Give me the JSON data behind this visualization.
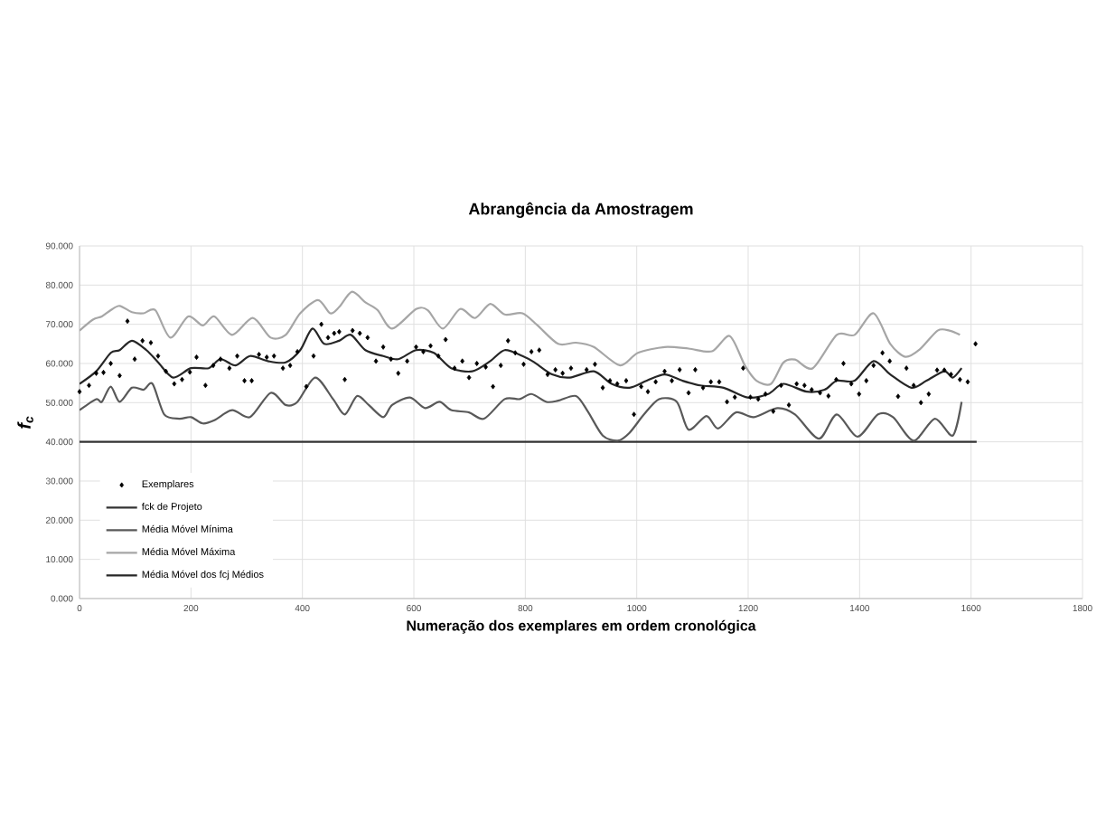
{
  "chart_data": {
    "type": "line",
    "title": "Abrangência da Amostragem",
    "xlabel": "Numeração dos exemplares em ordem cronológica",
    "ylabel": "f$_{c}$",
    "xlim": [
      0,
      1800
    ],
    "xticks": [
      0,
      200,
      400,
      600,
      800,
      1000,
      1200,
      1400,
      1600,
      1800
    ],
    "ylim": [
      0,
      90
    ],
    "yticks": [
      {
        "value": 0,
        "label": "0.000"
      },
      {
        "value": 10,
        "label": "10.000"
      },
      {
        "value": 20,
        "label": "20.000"
      },
      {
        "value": 30,
        "label": "30.000"
      },
      {
        "value": 40,
        "label": "40.000"
      },
      {
        "value": 50,
        "label": "50.000"
      },
      {
        "value": 60,
        "label": "60.000"
      },
      {
        "value": 70,
        "label": "70.000"
      },
      {
        "value": 80,
        "label": "80.000"
      },
      {
        "value": 90,
        "label": "90.000"
      }
    ],
    "grid": true,
    "legend": "bottom left",
    "series": [
      {
        "name": "Exemplares",
        "type": "scatter",
        "marker": "diamond",
        "color": "#000000",
        "x": [
          0,
          17,
          30,
          43,
          56,
          72,
          86,
          99,
          113,
          128,
          141,
          155,
          170,
          184,
          198,
          210,
          226,
          240,
          253,
          269,
          283,
          296,
          309,
          322,
          336,
          349,
          365,
          378,
          391,
          407,
          420,
          434,
          446,
          457,
          466,
          476,
          490,
          503,
          517,
          532,
          545,
          559,
          572,
          588,
          604,
          617,
          630,
          644,
          657,
          673,
          687,
          699,
          713,
          729,
          742,
          756,
          769,
          782,
          797,
          811,
          825,
          840,
          854,
          867,
          882,
          910,
          925,
          939,
          952,
          965,
          981,
          995,
          1008,
          1020,
          1034,
          1050,
          1063,
          1077,
          1093,
          1105,
          1119,
          1133,
          1148,
          1162,
          1176,
          1191,
          1204,
          1218,
          1231,
          1245,
          1259,
          1273,
          1287,
          1301,
          1314,
          1329,
          1344,
          1358,
          1371,
          1385,
          1399,
          1412,
          1425,
          1441,
          1454,
          1469,
          1484,
          1497,
          1510,
          1524,
          1539,
          1552,
          1564,
          1580,
          1594,
          1608
        ],
        "values": [
          52.8,
          54.4,
          57.5,
          57.7,
          60,
          56.9,
          70.8,
          61.1,
          65.8,
          65.3,
          61.9,
          58,
          54.8,
          55.9,
          57.8,
          61.6,
          54.4,
          59.5,
          61.1,
          58.8,
          61.9,
          55.6,
          55.6,
          62.3,
          61.6,
          61.9,
          58.8,
          59.5,
          63,
          54.1,
          61.9,
          70,
          66.6,
          67.7,
          68.1,
          55.9,
          68.4,
          67.7,
          66.6,
          60.6,
          64.2,
          61.1,
          57.5,
          60.6,
          64.2,
          63,
          64.5,
          61.9,
          66.1,
          58.8,
          60.6,
          56.4,
          60,
          59.1,
          54.1,
          59.5,
          65.8,
          62.7,
          59.8,
          63,
          63.4,
          57.2,
          58.4,
          57.5,
          58.8,
          58.4,
          59.8,
          53.8,
          55.6,
          54.8,
          55.6,
          47,
          54.1,
          52.8,
          55.3,
          58,
          55.6,
          58.4,
          52.5,
          58.4,
          53.8,
          55.3,
          55.3,
          50.2,
          51.4,
          58.8,
          51.4,
          50.9,
          52.2,
          47.8,
          54.4,
          49.4,
          54.8,
          54.4,
          53.3,
          52.5,
          51.7,
          55.9,
          60,
          54.8,
          52.2,
          55.6,
          59.5,
          62.7,
          60.6,
          51.6,
          58.8,
          54.4,
          50,
          52.2,
          58.3,
          58.3,
          57.2,
          55.9,
          55.3,
          65
        ]
      },
      {
        "name": "fck de Projeto",
        "color": "#333333",
        "x": [
          0,
          1610
        ],
        "values": [
          40,
          40
        ]
      },
      {
        "name": "Média Móvel Mínima",
        "color": "#595959",
        "x": [
          0,
          30,
          40,
          56,
          72,
          94,
          115,
          131,
          152,
          179,
          200,
          221,
          242,
          274,
          306,
          343,
          370,
          391,
          423,
          455,
          476,
          498,
          519,
          545,
          561,
          593,
          620,
          646,
          667,
          699,
          726,
          763,
          790,
          811,
          838,
          859,
          891,
          912,
          939,
          966,
          987,
          1013,
          1040,
          1072,
          1093,
          1125,
          1146,
          1178,
          1210,
          1252,
          1284,
          1327,
          1359,
          1396,
          1433,
          1460,
          1497,
          1535,
          1567,
          1583
        ],
        "values": [
          48.1,
          50.9,
          50.2,
          54.1,
          50.2,
          53.8,
          53.3,
          54.8,
          47,
          45.9,
          46.3,
          44.7,
          45.5,
          48.1,
          46.3,
          52.5,
          49.4,
          50.2,
          56.4,
          50.9,
          47,
          51.7,
          49.4,
          46.3,
          49.4,
          51.3,
          48.6,
          50.2,
          48.1,
          47.5,
          45.9,
          50.9,
          50.9,
          52.2,
          50.2,
          50.5,
          51.7,
          47.8,
          41.6,
          40.3,
          42.3,
          47,
          50.9,
          50.2,
          43.1,
          46.6,
          43.4,
          47.5,
          46.3,
          48.6,
          47,
          40.8,
          47,
          41.3,
          47,
          46.3,
          40.3,
          45.9,
          41.6,
          50.2
        ]
      },
      {
        "name": "Média Móvel Máxima",
        "color": "#a6a6a6",
        "x": [
          0,
          24,
          40,
          56,
          72,
          94,
          115,
          136,
          163,
          195,
          221,
          242,
          274,
          311,
          343,
          370,
          396,
          428,
          450,
          466,
          489,
          513,
          535,
          561,
          604,
          625,
          652,
          683,
          710,
          737,
          763,
          795,
          822,
          859,
          891,
          923,
          970,
          1002,
          1050,
          1093,
          1135,
          1167,
          1194,
          1215,
          1241,
          1263,
          1284,
          1316,
          1359,
          1391,
          1425,
          1455,
          1482,
          1508,
          1540,
          1561,
          1580
        ],
        "values": [
          68.4,
          71.2,
          72,
          73.6,
          74.7,
          73.1,
          72.8,
          73.6,
          66.6,
          72,
          69.7,
          72,
          67.3,
          71.6,
          66.6,
          67.3,
          72.8,
          76.2,
          72.8,
          74.4,
          78.3,
          75.6,
          73.6,
          68.9,
          73.9,
          73.6,
          68.9,
          73.9,
          71.6,
          75.2,
          72.5,
          72.8,
          69.7,
          65,
          65.3,
          64.2,
          59.5,
          62.7,
          64.2,
          63.8,
          63.1,
          67,
          59.5,
          55.6,
          54.8,
          60.2,
          61,
          58.8,
          67.3,
          67.3,
          72.8,
          65,
          61.7,
          63.6,
          68.4,
          68.4,
          67.3
        ]
      },
      {
        "name": "Média Móvel dos fcj Médios",
        "color": "#262626",
        "x": [
          0,
          30,
          56,
          72,
          94,
          120,
          141,
          168,
          200,
          232,
          253,
          280,
          306,
          338,
          370,
          396,
          418,
          439,
          466,
          487,
          513,
          545,
          572,
          604,
          636,
          667,
          705,
          737,
          763,
          795,
          816,
          848,
          880,
          923,
          955,
          987,
          1018,
          1050,
          1082,
          1114,
          1156,
          1199,
          1236,
          1263,
          1305,
          1337,
          1359,
          1391,
          1425,
          1455,
          1493,
          1520,
          1552,
          1567,
          1583
        ],
        "values": [
          54.8,
          58,
          62.7,
          63.4,
          65.8,
          63.4,
          60.3,
          56.4,
          58.8,
          58.8,
          61.1,
          59.5,
          61.9,
          60.6,
          60.3,
          63.4,
          68.9,
          65,
          65.8,
          67.3,
          63.4,
          61.9,
          61.1,
          63.4,
          62.7,
          58.8,
          58,
          60.6,
          63.4,
          61.9,
          60.3,
          57.2,
          56.4,
          58,
          54.8,
          53.8,
          55.6,
          57.2,
          55.6,
          54.4,
          53.8,
          51.3,
          52.2,
          54.8,
          52.8,
          53.3,
          55.6,
          55.6,
          60.6,
          57.2,
          53.8,
          55.6,
          58,
          56.4,
          58.8
        ]
      }
    ]
  }
}
